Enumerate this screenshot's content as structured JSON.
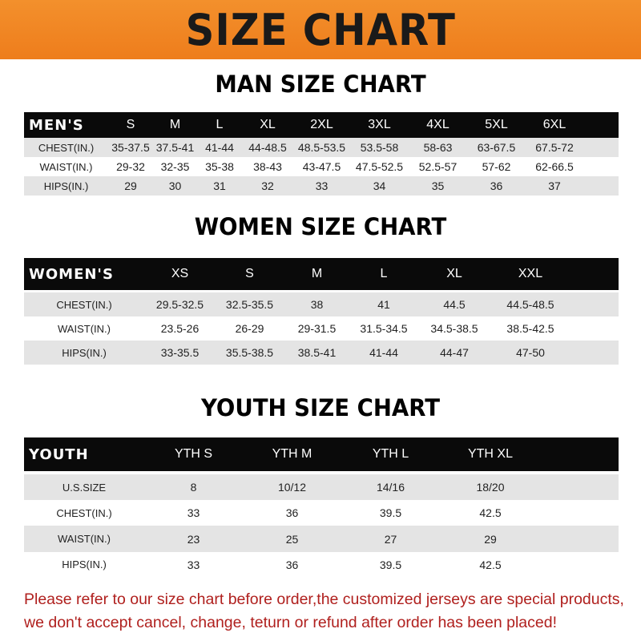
{
  "banner": {
    "title": "SIZE CHART",
    "color": "#f08524"
  },
  "men": {
    "title": "MAN SIZE CHART",
    "header": [
      "MEN'S",
      "S",
      "M",
      "L",
      "XL",
      "2XL",
      "3XL",
      "4XL",
      "5XL",
      "6XL"
    ],
    "rows": [
      [
        "CHEST(IN.)",
        "35-37.5",
        "37.5-41",
        "41-44",
        "44-48.5",
        "48.5-53.5",
        "53.5-58",
        "58-63",
        "63-67.5",
        "67.5-72"
      ],
      [
        "WAIST(IN.)",
        "29-32",
        "32-35",
        "35-38",
        "38-43",
        "43-47.5",
        "47.5-52.5",
        "52.5-57",
        "57-62",
        "62-66.5"
      ],
      [
        "HIPS(IN.)",
        "29",
        "30",
        "31",
        "32",
        "33",
        "34",
        "35",
        "36",
        "37"
      ]
    ]
  },
  "women": {
    "title": "WOMEN SIZE CHART",
    "header": [
      "WOMEN'S",
      "XS",
      "S",
      "M",
      "L",
      "XL",
      "XXL"
    ],
    "rows": [
      [
        "CHEST(IN.)",
        "29.5-32.5",
        "32.5-35.5",
        "38",
        "41",
        "44.5",
        "44.5-48.5"
      ],
      [
        "WAIST(IN.)",
        "23.5-26",
        "26-29",
        "29-31.5",
        "31.5-34.5",
        "34.5-38.5",
        "38.5-42.5"
      ],
      [
        "HIPS(IN.)",
        "33-35.5",
        "35.5-38.5",
        "38.5-41",
        "41-44",
        "44-47",
        "47-50"
      ]
    ]
  },
  "youth": {
    "title": "YOUTH SIZE CHART",
    "header": [
      "YOUTH",
      "YTH S",
      "YTH M",
      "YTH L",
      "YTH XL"
    ],
    "rows": [
      [
        "U.S.SIZE",
        "8",
        "10/12",
        "14/16",
        "18/20"
      ],
      [
        "CHEST(IN.)",
        "33",
        "36",
        "39.5",
        "42.5"
      ],
      [
        "WAIST(IN.)",
        "23",
        "25",
        "27",
        "29"
      ],
      [
        "HIPS(IN.)",
        "33",
        "36",
        "39.5",
        "42.5"
      ]
    ]
  },
  "notice": {
    "line1": "Please refer to our size chart before order,the customized jerseys are special products,",
    "line2": "we don't accept cancel, change, teturn or refund after order has been placed!",
    "color": "#b0201e"
  }
}
